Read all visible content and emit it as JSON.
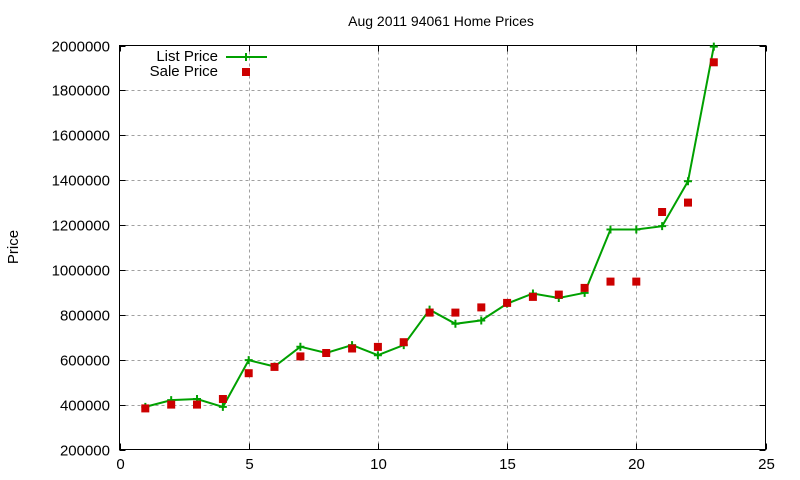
{
  "chart_data": {
    "type": "line",
    "title": "Aug 2011 94061 Home Prices",
    "xlabel": "",
    "ylabel": "Price",
    "xlim": [
      0,
      25
    ],
    "ylim": [
      200000,
      2000000
    ],
    "x_ticks": [
      0,
      5,
      10,
      15,
      20,
      25
    ],
    "y_ticks": [
      200000,
      400000,
      600000,
      800000,
      1000000,
      1200000,
      1400000,
      1600000,
      1800000,
      2000000
    ],
    "grid": true,
    "legend_position": "top-left",
    "x": [
      1,
      2,
      3,
      4,
      5,
      6,
      7,
      8,
      9,
      10,
      11,
      12,
      13,
      14,
      15,
      16,
      17,
      18,
      19,
      20,
      21,
      22,
      23
    ],
    "series": [
      {
        "name": "List Price",
        "style": "linespoints",
        "color": "#00a000",
        "values": [
          390000,
          420000,
          425000,
          390000,
          598000,
          570000,
          658000,
          630000,
          665000,
          620000,
          665000,
          823000,
          760000,
          775000,
          850000,
          895000,
          875000,
          898000,
          1180000,
          1180000,
          1195000,
          1395000,
          1995000
        ]
      },
      {
        "name": "Sale Price",
        "style": "points",
        "color": "#cc0000",
        "values": [
          383000,
          400000,
          400000,
          425000,
          540000,
          568000,
          615000,
          630000,
          650000,
          657000,
          678000,
          810000,
          810000,
          833000,
          853000,
          880000,
          890000,
          920000,
          948000,
          948000,
          1258000,
          1300000,
          1925000
        ]
      }
    ]
  }
}
